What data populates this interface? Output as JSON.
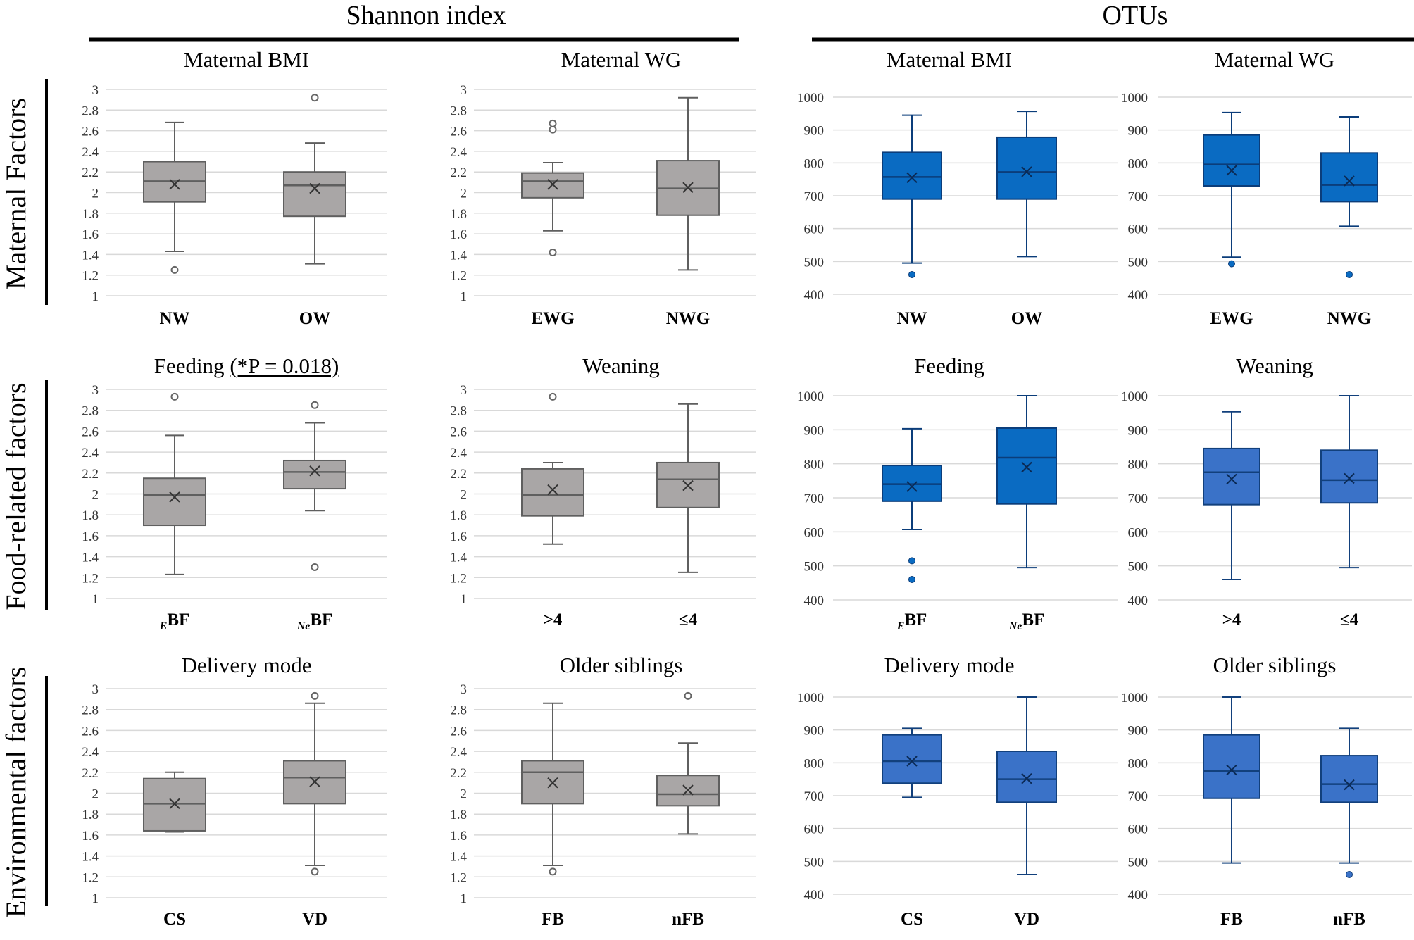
{
  "sections": [
    "Shannon index",
    "OTUs"
  ],
  "row_labels": [
    "Maternal Factors",
    "Food-related factors",
    "Environmental factors"
  ],
  "colors": {
    "gray_fill": "#a9a6a6",
    "gray_stroke": "#5f5f5f",
    "blue_dark_fill": "#0a6bc2",
    "blue_dark_stroke": "#0b3d7a",
    "blue_mid_fill": "#3a72c8",
    "blue_mid_stroke": "#12407c",
    "grid": "#d9d9d9",
    "text": "#000000"
  },
  "chart_data": [
    {
      "id": "p1",
      "type": "boxplot",
      "metric": "Shannon index",
      "title": "Maternal BMI",
      "ylim": [
        1,
        3
      ],
      "yticks": [
        1,
        1.2,
        1.4,
        1.6,
        1.8,
        2,
        2.2,
        2.4,
        2.6,
        2.8,
        3
      ],
      "categories": [
        {
          "label": "NW"
        },
        {
          "label": "OW"
        }
      ],
      "boxes": [
        {
          "whisker_low": 1.43,
          "q1": 1.91,
          "median": 2.11,
          "q3": 2.3,
          "whisker_high": 2.68,
          "mean": 2.08,
          "outliers": [
            1.25
          ]
        },
        {
          "whisker_low": 1.31,
          "q1": 1.77,
          "median": 2.07,
          "q3": 2.2,
          "whisker_high": 2.48,
          "mean": 2.04,
          "outliers": [
            2.92
          ]
        }
      ]
    },
    {
      "id": "p2",
      "type": "boxplot",
      "metric": "Shannon index",
      "title": "Maternal WG",
      "ylim": [
        1,
        3
      ],
      "yticks": [
        1,
        1.2,
        1.4,
        1.6,
        1.8,
        2,
        2.2,
        2.4,
        2.6,
        2.8,
        3
      ],
      "categories": [
        {
          "label": "EWG"
        },
        {
          "label": "NWG"
        }
      ],
      "boxes": [
        {
          "whisker_low": 1.63,
          "q1": 1.95,
          "median": 2.11,
          "q3": 2.19,
          "whisker_high": 2.29,
          "mean": 2.08,
          "outliers": [
            1.42,
            2.61,
            2.67
          ]
        },
        {
          "whisker_low": 1.25,
          "q1": 1.78,
          "median": 2.04,
          "q3": 2.31,
          "whisker_high": 2.92,
          "mean": 2.05,
          "outliers": []
        }
      ]
    },
    {
      "id": "p3",
      "type": "boxplot",
      "metric": "OTUs",
      "title": "Maternal BMI",
      "ylim": [
        400,
        1000
      ],
      "yticks": [
        400,
        500,
        600,
        700,
        800,
        900,
        1000
      ],
      "categories": [
        {
          "label": "NW"
        },
        {
          "label": "OW"
        }
      ],
      "boxes": [
        {
          "whisker_low": 495,
          "q1": 690,
          "median": 757,
          "q3": 832,
          "whisker_high": 945,
          "mean": 755,
          "outliers": [
            460
          ]
        },
        {
          "whisker_low": 515,
          "q1": 690,
          "median": 772,
          "q3": 878,
          "whisker_high": 957,
          "mean": 773,
          "outliers": []
        }
      ]
    },
    {
      "id": "p4",
      "type": "boxplot",
      "metric": "OTUs",
      "title": "Maternal WG",
      "ylim": [
        400,
        1000
      ],
      "yticks": [
        400,
        500,
        600,
        700,
        800,
        900,
        1000
      ],
      "categories": [
        {
          "label": "EWG"
        },
        {
          "label": "NWG"
        }
      ],
      "boxes": [
        {
          "whisker_low": 513,
          "q1": 730,
          "median": 795,
          "q3": 885,
          "whisker_high": 953,
          "mean": 777,
          "outliers": [
            493
          ]
        },
        {
          "whisker_low": 607,
          "q1": 682,
          "median": 733,
          "q3": 830,
          "whisker_high": 940,
          "mean": 745,
          "outliers": [
            460
          ]
        }
      ]
    },
    {
      "id": "p5",
      "type": "boxplot",
      "metric": "Shannon index",
      "title": "Feeding",
      "title_note": "(*P = 0.018)",
      "ylim": [
        1,
        3
      ],
      "yticks": [
        1,
        1.2,
        1.4,
        1.6,
        1.8,
        2,
        2.2,
        2.4,
        2.6,
        2.8,
        3
      ],
      "categories": [
        {
          "label": "BF",
          "sub": "E"
        },
        {
          "label": "BF",
          "sub": "Ne"
        }
      ],
      "boxes": [
        {
          "whisker_low": 1.23,
          "q1": 1.7,
          "median": 1.99,
          "q3": 2.15,
          "whisker_high": 2.56,
          "mean": 1.97,
          "outliers": [
            2.93
          ]
        },
        {
          "whisker_low": 1.84,
          "q1": 2.05,
          "median": 2.21,
          "q3": 2.32,
          "whisker_high": 2.68,
          "mean": 2.22,
          "outliers": [
            1.3,
            2.85
          ]
        }
      ]
    },
    {
      "id": "p6",
      "type": "boxplot",
      "metric": "Shannon index",
      "title": "Weaning",
      "ylim": [
        1,
        3
      ],
      "yticks": [
        1,
        1.2,
        1.4,
        1.6,
        1.8,
        2,
        2.2,
        2.4,
        2.6,
        2.8,
        3
      ],
      "categories": [
        {
          "label": ">4"
        },
        {
          "label": "≤4"
        }
      ],
      "boxes": [
        {
          "whisker_low": 1.52,
          "q1": 1.79,
          "median": 1.99,
          "q3": 2.24,
          "whisker_high": 2.3,
          "mean": 2.04,
          "outliers": [
            2.93
          ]
        },
        {
          "whisker_low": 1.25,
          "q1": 1.87,
          "median": 2.14,
          "q3": 2.3,
          "whisker_high": 2.86,
          "mean": 2.08,
          "outliers": []
        }
      ]
    },
    {
      "id": "p7",
      "type": "boxplot",
      "metric": "OTUs",
      "title": "Feeding",
      "ylim": [
        400,
        1000
      ],
      "yticks": [
        400,
        500,
        600,
        700,
        800,
        900,
        1000
      ],
      "categories": [
        {
          "label": "BF",
          "sub": "E"
        },
        {
          "label": "BF",
          "sub": "Ne"
        }
      ],
      "boxes": [
        {
          "whisker_low": 607,
          "q1": 690,
          "median": 740,
          "q3": 795,
          "whisker_high": 903,
          "mean": 733,
          "outliers": [
            515,
            460
          ]
        },
        {
          "whisker_low": 495,
          "q1": 682,
          "median": 818,
          "q3": 905,
          "whisker_high": 1000,
          "mean": 790,
          "outliers": []
        }
      ]
    },
    {
      "id": "p8",
      "type": "boxplot",
      "metric": "OTUs",
      "title": "Weaning",
      "ylim": [
        400,
        1000
      ],
      "yticks": [
        400,
        500,
        600,
        700,
        800,
        900,
        1000
      ],
      "categories": [
        {
          "label": ">4"
        },
        {
          "label": "≤4"
        }
      ],
      "boxes": [
        {
          "whisker_low": 460,
          "q1": 680,
          "median": 775,
          "q3": 845,
          "whisker_high": 953,
          "mean": 755,
          "outliers": []
        },
        {
          "whisker_low": 495,
          "q1": 685,
          "median": 752,
          "q3": 840,
          "whisker_high": 1000,
          "mean": 757,
          "outliers": []
        }
      ]
    },
    {
      "id": "p9",
      "type": "boxplot",
      "metric": "Shannon index",
      "title": "Delivery mode",
      "ylim": [
        1,
        3
      ],
      "yticks": [
        1,
        1.2,
        1.4,
        1.6,
        1.8,
        2,
        2.2,
        2.4,
        2.6,
        2.8,
        3
      ],
      "categories": [
        {
          "label": "CS"
        },
        {
          "label": "VD"
        }
      ],
      "boxes": [
        {
          "whisker_low": 1.63,
          "q1": 1.64,
          "median": 1.9,
          "q3": 2.14,
          "whisker_high": 2.2,
          "mean": 1.9,
          "outliers": []
        },
        {
          "whisker_low": 1.31,
          "q1": 1.9,
          "median": 2.15,
          "q3": 2.31,
          "whisker_high": 2.86,
          "mean": 2.11,
          "outliers": [
            1.25,
            2.93
          ]
        }
      ]
    },
    {
      "id": "p10",
      "type": "boxplot",
      "metric": "Shannon index",
      "title": "Older siblings",
      "ylim": [
        1,
        3
      ],
      "yticks": [
        1,
        1.2,
        1.4,
        1.6,
        1.8,
        2,
        2.2,
        2.4,
        2.6,
        2.8,
        3
      ],
      "categories": [
        {
          "label": "FB"
        },
        {
          "label": "nFB"
        }
      ],
      "boxes": [
        {
          "whisker_low": 1.31,
          "q1": 1.9,
          "median": 2.2,
          "q3": 2.31,
          "whisker_high": 2.86,
          "mean": 2.1,
          "outliers": [
            1.25
          ]
        },
        {
          "whisker_low": 1.61,
          "q1": 1.88,
          "median": 1.99,
          "q3": 2.17,
          "whisker_high": 2.48,
          "mean": 2.03,
          "outliers": [
            2.93
          ]
        }
      ]
    },
    {
      "id": "p11",
      "type": "boxplot",
      "metric": "OTUs",
      "title": "Delivery mode",
      "ylim": [
        400,
        1000
      ],
      "yticks": [
        400,
        500,
        600,
        700,
        800,
        900,
        1000
      ],
      "categories": [
        {
          "label": "CS"
        },
        {
          "label": "VD"
        }
      ],
      "boxes": [
        {
          "whisker_low": 695,
          "q1": 738,
          "median": 805,
          "q3": 885,
          "whisker_high": 905,
          "mean": 805,
          "outliers": []
        },
        {
          "whisker_low": 460,
          "q1": 680,
          "median": 750,
          "q3": 835,
          "whisker_high": 1000,
          "mean": 752,
          "outliers": []
        }
      ]
    },
    {
      "id": "p12",
      "type": "boxplot",
      "metric": "OTUs",
      "title": "Older siblings",
      "ylim": [
        400,
        1000
      ],
      "yticks": [
        400,
        500,
        600,
        700,
        800,
        900,
        1000
      ],
      "categories": [
        {
          "label": "FB"
        },
        {
          "label": "nFB"
        }
      ],
      "boxes": [
        {
          "whisker_low": 495,
          "q1": 692,
          "median": 775,
          "q3": 885,
          "whisker_high": 1000,
          "mean": 778,
          "outliers": []
        },
        {
          "whisker_low": 495,
          "q1": 680,
          "median": 735,
          "q3": 822,
          "whisker_high": 905,
          "mean": 733,
          "outliers": [
            460
          ]
        }
      ]
    }
  ]
}
